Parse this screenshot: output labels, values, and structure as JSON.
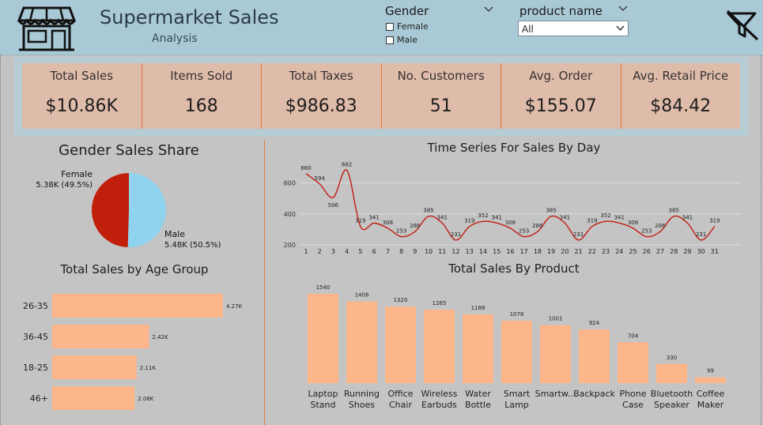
{
  "header": {
    "title": "Supermarket Sales",
    "subtitle": "Analysis"
  },
  "gender_slicer": {
    "title": "Gender",
    "options": [
      {
        "label": "Female",
        "checked": false
      },
      {
        "label": "Male",
        "checked": false
      }
    ]
  },
  "product_slicer": {
    "title": "product name",
    "selected": "All"
  },
  "kpis": [
    {
      "label": "Total Sales",
      "value": "$10.86K"
    },
    {
      "label": "Items Sold",
      "value": "168"
    },
    {
      "label": "Total Taxes",
      "value": "$986.83"
    },
    {
      "label": "No. Customers",
      "value": "51"
    },
    {
      "label": "Avg. Order",
      "value": "$155.07"
    },
    {
      "label": "Avg. Retail Price",
      "value": "$84.42"
    }
  ],
  "colors": {
    "female": "#c11e0c",
    "male": "#8fd3ee",
    "bar": "#fdb68a",
    "line": "#c21d10",
    "accent": "#e0783c"
  },
  "chart_data": [
    {
      "type": "pie",
      "title": "Gender Sales Share",
      "slices": [
        {
          "label": "Female",
          "value_label": "5.38K (49.5%)",
          "value": 5.38,
          "percent": 49.5
        },
        {
          "label": "Male",
          "value_label": "5.48K (50.5%)",
          "value": 5.48,
          "percent": 50.5
        }
      ]
    },
    {
      "type": "line",
      "title": "Time Series For Sales By Day",
      "x": [
        1,
        2,
        3,
        4,
        5,
        6,
        7,
        8,
        9,
        10,
        11,
        12,
        13,
        14,
        15,
        16,
        17,
        18,
        19,
        20,
        21,
        22,
        23,
        24,
        25,
        26,
        27,
        28,
        29,
        30,
        31
      ],
      "values": [
        660,
        594,
        506,
        682,
        319,
        341,
        308,
        253,
        286,
        385,
        341,
        231,
        319,
        352,
        341,
        308,
        253,
        286,
        385,
        341,
        231,
        319,
        352,
        341,
        308,
        253,
        286,
        385,
        341,
        231,
        319
      ],
      "y_ticks": [
        200,
        400,
        600
      ],
      "ylim": [
        200,
        700
      ]
    },
    {
      "type": "bar",
      "orientation": "horizontal",
      "title": "Total Sales by Age Group",
      "categories": [
        "26-35",
        "36-45",
        "18-25",
        "46+"
      ],
      "values": [
        4.27,
        2.42,
        2.11,
        2.06
      ],
      "value_labels": [
        "4.27K",
        "2.42K",
        "2.11K",
        "2.06K"
      ]
    },
    {
      "type": "bar",
      "title": "Total Sales By Product",
      "categories": [
        [
          "Laptop",
          "Stand"
        ],
        [
          "Running",
          "Shoes"
        ],
        [
          "Office",
          "Chair"
        ],
        [
          "Wireless",
          "Earbuds"
        ],
        [
          "Water",
          "Bottle"
        ],
        [
          "Smart",
          "Lamp"
        ],
        [
          "Smartw..."
        ],
        [
          "Backpack"
        ],
        [
          "Phone",
          "Case"
        ],
        [
          "Bluetooth",
          "Speaker"
        ],
        [
          "Coffee",
          "Maker"
        ]
      ],
      "values": [
        1540,
        1408,
        1320,
        1265,
        1188,
        1078,
        1001,
        924,
        704,
        330,
        99
      ]
    }
  ]
}
